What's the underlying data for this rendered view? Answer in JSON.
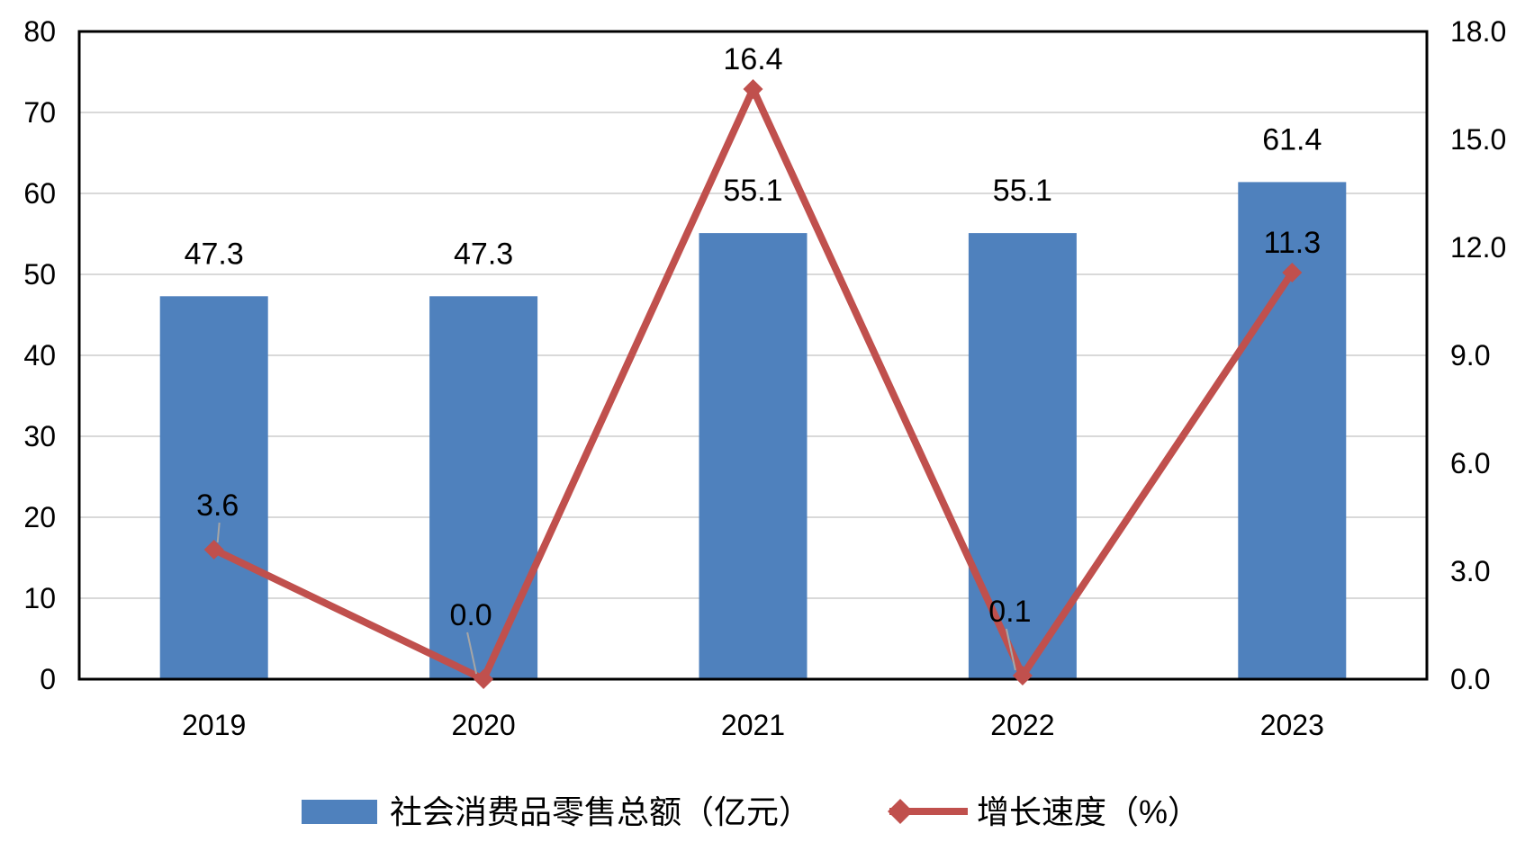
{
  "chart_data": {
    "type": "bar",
    "categories": [
      "2019",
      "2020",
      "2021",
      "2022",
      "2023"
    ],
    "series": [
      {
        "name": "社会消费品零售总额（亿元）",
        "type": "bar",
        "axis": "left",
        "values": [
          47.3,
          47.3,
          55.1,
          55.1,
          61.4
        ],
        "labels": [
          "47.3",
          "47.3",
          "55.1",
          "55.1",
          "61.4"
        ],
        "color": "#4F81BD"
      },
      {
        "name": "增长速度（%）",
        "type": "line",
        "axis": "right",
        "values": [
          3.6,
          0.0,
          16.4,
          0.1,
          11.3
        ],
        "labels": [
          "3.6",
          "0.0",
          "16.4",
          "0.1",
          "11.3"
        ],
        "color": "#C0504D",
        "marker": "diamond"
      }
    ],
    "y_left": {
      "ylim": [
        0,
        80
      ],
      "ticks": [
        "0",
        "10",
        "20",
        "30",
        "40",
        "50",
        "60",
        "70",
        "80"
      ]
    },
    "y_right": {
      "ylim": [
        0,
        18
      ],
      "ticks": [
        "0.0",
        "3.0",
        "6.0",
        "9.0",
        "12.0",
        "15.0",
        "18.0"
      ]
    },
    "grid": true,
    "legend": "bottom",
    "title": "",
    "xlabel": "",
    "ylabel": ""
  }
}
